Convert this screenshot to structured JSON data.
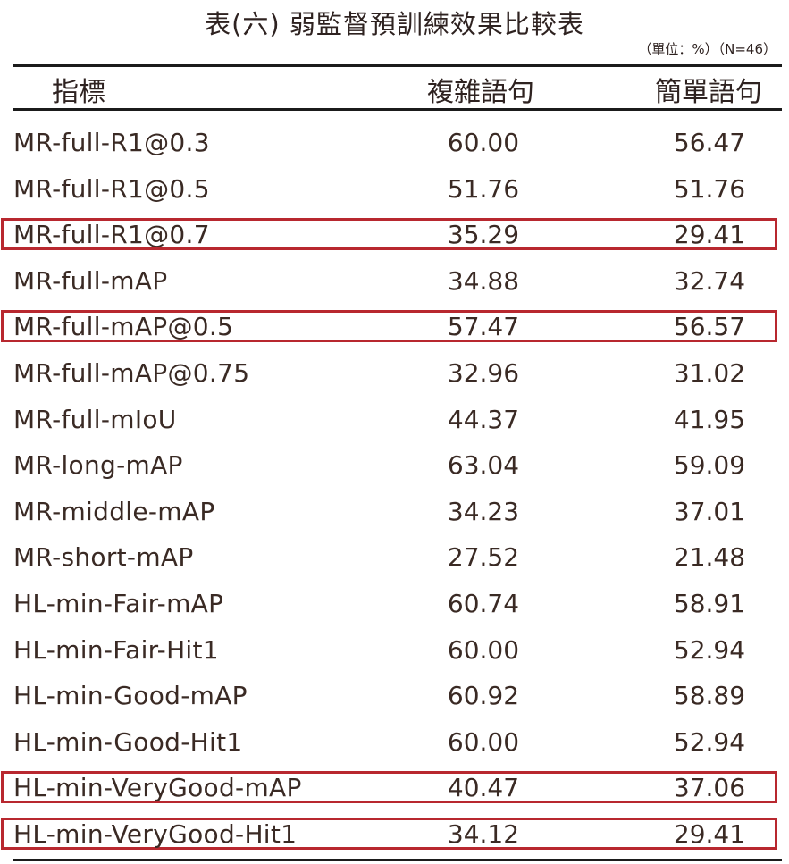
{
  "title": "表(六)  弱監督預訓練效果比較表",
  "unit_note": "（單位：%）（N=46）",
  "header": {
    "col0": "指標",
    "col1": "複雜語句",
    "col2": "簡單語句"
  },
  "highlight_color": "#b8282f",
  "rows": [
    {
      "metric": "MR-full-R1@0.3",
      "complex": "60.00",
      "simple": "56.47",
      "highlighted": false
    },
    {
      "metric": "MR-full-R1@0.5",
      "complex": "51.76",
      "simple": "51.76",
      "highlighted": false
    },
    {
      "metric": "MR-full-R1@0.7",
      "complex": "35.29",
      "simple": "29.41",
      "highlighted": true
    },
    {
      "metric": "MR-full-mAP",
      "complex": "34.88",
      "simple": "32.74",
      "highlighted": false
    },
    {
      "metric": "MR-full-mAP@0.5",
      "complex": "57.47",
      "simple": "56.57",
      "highlighted": true
    },
    {
      "metric": "MR-full-mAP@0.75",
      "complex": "32.96",
      "simple": "31.02",
      "highlighted": false
    },
    {
      "metric": "MR-full-mIoU",
      "complex": "44.37",
      "simple": "41.95",
      "highlighted": false
    },
    {
      "metric": "MR-long-mAP",
      "complex": "63.04",
      "simple": "59.09",
      "highlighted": false
    },
    {
      "metric": "MR-middle-mAP",
      "complex": "34.23",
      "simple": "37.01",
      "highlighted": false
    },
    {
      "metric": "MR-short-mAP",
      "complex": "27.52",
      "simple": "21.48",
      "highlighted": false
    },
    {
      "metric": "HL-min-Fair-mAP",
      "complex": "60.74",
      "simple": "58.91",
      "highlighted": false
    },
    {
      "metric": "HL-min-Fair-Hit1",
      "complex": "60.00",
      "simple": "52.94",
      "highlighted": false
    },
    {
      "metric": "HL-min-Good-mAP",
      "complex": "60.92",
      "simple": "58.89",
      "highlighted": false
    },
    {
      "metric": "HL-min-Good-Hit1",
      "complex": "60.00",
      "simple": "52.94",
      "highlighted": false
    },
    {
      "metric": "HL-min-VeryGood-mAP",
      "complex": "40.47",
      "simple": "37.06",
      "highlighted": true
    },
    {
      "metric": "HL-min-VeryGood-Hit1",
      "complex": "34.12",
      "simple": "29.41",
      "highlighted": true
    }
  ]
}
